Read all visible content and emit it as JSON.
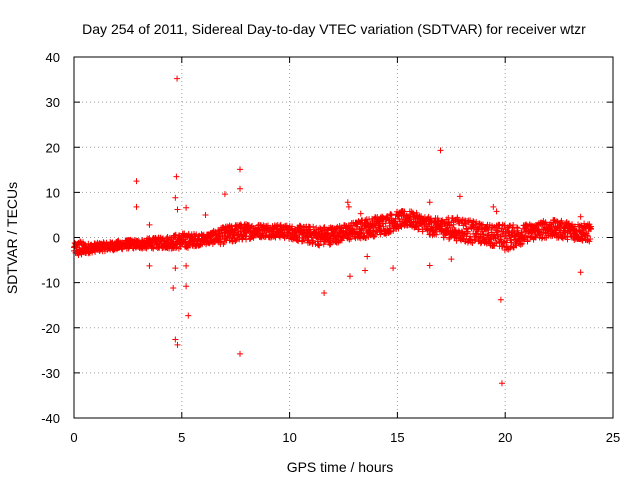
{
  "chart_data": {
    "type": "scatter",
    "title": "Day 254 of 2011, Sidereal Day-to-day VTEC variation (SDTVAR) for receiver wtzr",
    "xlabel": "GPS time / hours",
    "ylabel": "SDTVAR / TECUs",
    "xlim": [
      0,
      25
    ],
    "ylim": [
      -40,
      40
    ],
    "xticks": [
      0,
      5,
      10,
      15,
      20,
      25
    ],
    "yticks": [
      -40,
      -30,
      -20,
      -10,
      0,
      10,
      20,
      30,
      40
    ],
    "grid": true,
    "marker": "+",
    "series": [
      {
        "name": "SDTVAR",
        "color": "#ff0000",
        "band_profile": {
          "x": [
            0.0,
            0.3,
            0.5,
            1.0,
            1.5,
            2.0,
            2.5,
            3.0,
            3.5,
            4.0,
            4.5,
            5.0,
            5.5,
            6.0,
            6.5,
            7.0,
            7.5,
            8.0,
            8.5,
            9.0,
            9.5,
            10.0,
            10.5,
            11.0,
            11.5,
            12.0,
            12.5,
            13.0,
            13.5,
            14.0,
            14.5,
            15.0,
            15.5,
            16.0,
            16.5,
            17.0,
            17.5,
            18.0,
            18.5,
            19.0,
            19.5,
            20.0,
            20.5,
            21.0,
            21.5,
            22.0,
            22.5,
            23.0,
            23.5,
            24.0
          ],
          "center": [
            -2.5,
            -2.5,
            -2.5,
            -2.2,
            -2.0,
            -1.8,
            -1.5,
            -1.5,
            -1.3,
            -1.2,
            -1.0,
            -0.8,
            -0.6,
            -0.4,
            0.0,
            0.5,
            1.0,
            1.3,
            1.5,
            1.5,
            1.4,
            1.2,
            0.8,
            0.5,
            0.3,
            0.5,
            1.0,
            1.5,
            2.0,
            2.5,
            3.0,
            3.8,
            4.2,
            3.5,
            2.5,
            2.2,
            2.0,
            1.8,
            1.2,
            0.8,
            0.5,
            0.0,
            0.3,
            1.0,
            1.5,
            2.0,
            1.8,
            1.5,
            1.2,
            1.0
          ],
          "halfwidth": [
            1.2,
            2.0,
            1.2,
            1.0,
            1.0,
            1.0,
            1.0,
            1.0,
            1.2,
            1.2,
            1.5,
            1.8,
            1.5,
            1.2,
            1.5,
            2.0,
            2.0,
            1.8,
            1.5,
            1.5,
            1.5,
            1.5,
            1.8,
            2.0,
            2.2,
            2.0,
            1.8,
            2.0,
            2.2,
            2.2,
            2.2,
            2.0,
            1.8,
            1.8,
            2.0,
            2.0,
            2.5,
            2.8,
            2.5,
            2.2,
            2.5,
            3.0,
            2.5,
            2.0,
            2.0,
            2.0,
            2.0,
            2.0,
            2.0,
            2.0
          ]
        },
        "outliers": [
          [
            4.78,
            35.2
          ],
          [
            17.0,
            19.3
          ],
          [
            7.7,
            15.1
          ],
          [
            2.9,
            12.5
          ],
          [
            4.75,
            13.5
          ],
          [
            7.7,
            10.8
          ],
          [
            2.9,
            6.8
          ],
          [
            4.7,
            8.8
          ],
          [
            4.8,
            6.2
          ],
          [
            6.1,
            5.0
          ],
          [
            5.2,
            6.6
          ],
          [
            7.0,
            9.6
          ],
          [
            12.7,
            7.8
          ],
          [
            12.75,
            6.8
          ],
          [
            13.3,
            5.3
          ],
          [
            16.5,
            7.8
          ],
          [
            19.45,
            6.8
          ],
          [
            19.6,
            5.8
          ],
          [
            3.5,
            2.8
          ],
          [
            17.9,
            9.1
          ],
          [
            23.5,
            4.6
          ],
          [
            3.5,
            -6.3
          ],
          [
            4.7,
            -6.8
          ],
          [
            5.2,
            -6.3
          ],
          [
            4.6,
            -11.2
          ],
          [
            5.2,
            -10.8
          ],
          [
            5.3,
            -17.3
          ],
          [
            4.7,
            -22.6
          ],
          [
            4.8,
            -23.8
          ],
          [
            7.7,
            -25.8
          ],
          [
            11.6,
            -12.3
          ],
          [
            12.8,
            -8.6
          ],
          [
            13.5,
            -7.3
          ],
          [
            14.8,
            -6.8
          ],
          [
            16.5,
            -6.2
          ],
          [
            17.5,
            -4.8
          ],
          [
            19.8,
            -13.8
          ],
          [
            19.85,
            -32.3
          ],
          [
            23.5,
            -7.7
          ],
          [
            13.6,
            -4.2
          ]
        ]
      }
    ]
  }
}
